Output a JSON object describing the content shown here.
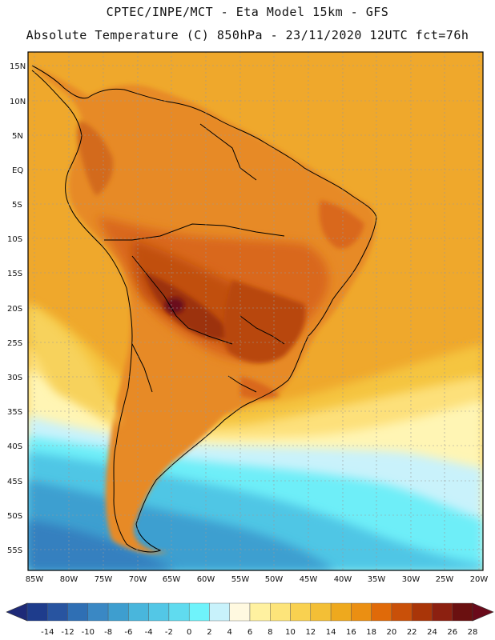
{
  "title_line1": "CPTEC/INPE/MCT -  Eta Model 15km - GFS",
  "title_line2": "Absolute Temperature (C) 850hPa - 23/11/2020 12UTC fct=76h",
  "lat_labels": [
    "15N",
    "10N",
    "5N",
    "EQ",
    "5S",
    "10S",
    "15S",
    "20S",
    "25S",
    "30S",
    "35S",
    "40S",
    "45S",
    "50S",
    "55S"
  ],
  "lon_labels": [
    "85W",
    "80W",
    "75W",
    "70W",
    "65W",
    "60W",
    "55W",
    "50W",
    "45W",
    "40W",
    "35W",
    "30W",
    "25W",
    "20W"
  ],
  "colorbar": {
    "labels": [
      "-14",
      "-12",
      "-10",
      "-8",
      "-6",
      "-4",
      "-2",
      "0",
      "2",
      "4",
      "6",
      "8",
      "10",
      "12",
      "14",
      "16",
      "18",
      "20",
      "22",
      "24",
      "26",
      "28"
    ],
    "colors": [
      "#1e3c8c",
      "#2854a0",
      "#2f6fb4",
      "#3a88c4",
      "#3e9ecf",
      "#49b6dc",
      "#53c7e6",
      "#60dbef",
      "#6ff3fb",
      "#c8f2fb",
      "#fff9e0",
      "#fff1a0",
      "#fde47a",
      "#f9d150",
      "#f3bf36",
      "#eea91e",
      "#eb8f12",
      "#e06a09",
      "#c95009",
      "#a93508",
      "#8c2010",
      "#6a1010"
    ],
    "low_end_color": "#1e2a78",
    "high_end_color": "#6a0a1a"
  },
  "colors": {
    "ocean_warm": "#eda32b",
    "land": "#e78a26"
  }
}
